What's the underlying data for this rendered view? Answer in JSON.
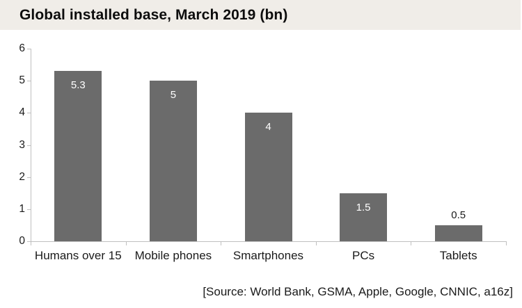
{
  "title": "Global installed base, March 2019 (bn)",
  "source_note": "[Source: World Bank, GSMA, Apple, Google, CNNIC, a16z]",
  "colors": {
    "bar": "#6b6b6b",
    "axis": "#bfbfbf",
    "title_background": "#f0ede8",
    "title_text": "#0d0d0d",
    "tick_label_text": "#1a1a1a",
    "value_label_inside": "#ffffff",
    "value_label_outside": "#1a1a1a",
    "page_background": "#ffffff"
  },
  "chart_data": {
    "type": "bar",
    "title": "Global installed base, March 2019 (bn)",
    "categories": [
      "Humans over 15",
      "Mobile phones",
      "Smartphones",
      "PCs",
      "Tablets"
    ],
    "values": [
      5.3,
      5,
      4,
      1.5,
      0.5
    ],
    "data_labels": [
      "5.3",
      "5",
      "4",
      "1.5",
      "0.5"
    ],
    "data_label_placement": [
      "inside-end",
      "inside-end",
      "inside-end",
      "inside-end",
      "outside-end"
    ],
    "xlabel": "",
    "ylabel": "",
    "ylim": [
      0,
      6
    ],
    "yticks": [
      0,
      1,
      2,
      3,
      4,
      5,
      6
    ],
    "grid": false,
    "legend": "none",
    "bar_color": "#6b6b6b"
  }
}
